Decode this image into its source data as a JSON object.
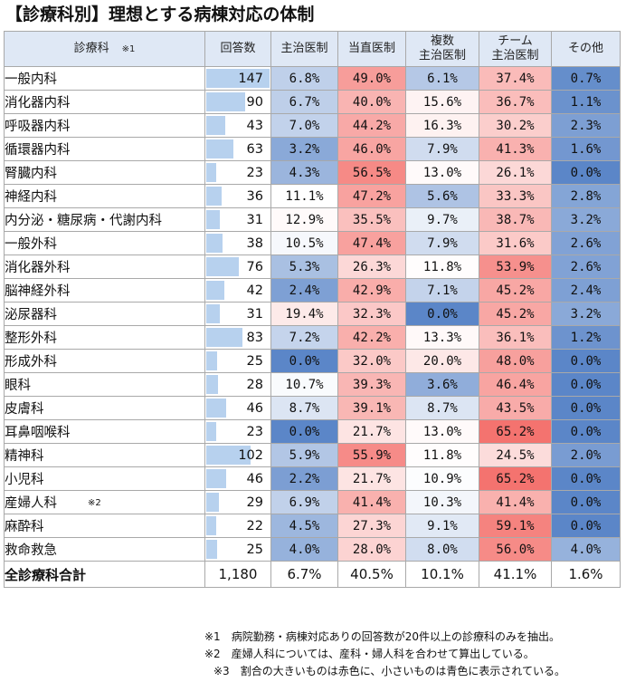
{
  "title": "【診療科別】理想とする病棟対応の体制",
  "chart_data": {
    "type": "table",
    "header": {
      "dept": "診療科",
      "dept_note": "※1",
      "count": "回答数",
      "cols": [
        {
          "l1": "主治医制",
          "l2": ""
        },
        {
          "l1": "当直医制",
          "l2": ""
        },
        {
          "l1": "複数",
          "l2": "主治医制"
        },
        {
          "l1": "チーム",
          "l2": "主治医制"
        },
        {
          "l1": "その他",
          "l2": ""
        }
      ]
    },
    "count_max": 147,
    "rows": [
      {
        "name": "一般内科",
        "note": "",
        "count": 147,
        "values": [
          6.8,
          49.0,
          6.1,
          37.4,
          0.7
        ]
      },
      {
        "name": "消化器内科",
        "note": "",
        "count": 90,
        "values": [
          6.7,
          40.0,
          15.6,
          36.7,
          1.1
        ]
      },
      {
        "name": "呼吸器内科",
        "note": "",
        "count": 43,
        "values": [
          7.0,
          44.2,
          16.3,
          30.2,
          2.3
        ]
      },
      {
        "name": "循環器内科",
        "note": "",
        "count": 63,
        "values": [
          3.2,
          46.0,
          7.9,
          41.3,
          1.6
        ]
      },
      {
        "name": "腎臓内科",
        "note": "",
        "count": 23,
        "values": [
          4.3,
          56.5,
          13.0,
          26.1,
          0.0
        ]
      },
      {
        "name": "神経内科",
        "note": "",
        "count": 36,
        "values": [
          11.1,
          47.2,
          5.6,
          33.3,
          2.8
        ]
      },
      {
        "name": "内分泌・糖尿病・代謝内科",
        "note": "",
        "count": 31,
        "values": [
          12.9,
          35.5,
          9.7,
          38.7,
          3.2
        ]
      },
      {
        "name": "一般外科",
        "note": "",
        "count": 38,
        "values": [
          10.5,
          47.4,
          7.9,
          31.6,
          2.6
        ]
      },
      {
        "name": "消化器外科",
        "note": "",
        "count": 76,
        "values": [
          5.3,
          26.3,
          11.8,
          53.9,
          2.6
        ]
      },
      {
        "name": "脳神経外科",
        "note": "",
        "count": 42,
        "values": [
          2.4,
          42.9,
          7.1,
          45.2,
          2.4
        ]
      },
      {
        "name": "泌尿器科",
        "note": "",
        "count": 31,
        "values": [
          19.4,
          32.3,
          0.0,
          45.2,
          3.2
        ]
      },
      {
        "name": "整形外科",
        "note": "",
        "count": 83,
        "values": [
          7.2,
          42.2,
          13.3,
          36.1,
          1.2
        ]
      },
      {
        "name": "形成外科",
        "note": "",
        "count": 25,
        "values": [
          0.0,
          32.0,
          20.0,
          48.0,
          0.0
        ]
      },
      {
        "name": "眼科",
        "note": "",
        "count": 28,
        "values": [
          10.7,
          39.3,
          3.6,
          46.4,
          0.0
        ]
      },
      {
        "name": "皮膚科",
        "note": "",
        "count": 46,
        "values": [
          8.7,
          39.1,
          8.7,
          43.5,
          0.0
        ]
      },
      {
        "name": "耳鼻咽喉科",
        "note": "",
        "count": 23,
        "values": [
          0.0,
          21.7,
          13.0,
          65.2,
          0.0
        ]
      },
      {
        "name": "精神科",
        "note": "",
        "count": 102,
        "values": [
          5.9,
          55.9,
          11.8,
          24.5,
          2.0
        ]
      },
      {
        "name": "小児科",
        "note": "",
        "count": 46,
        "values": [
          2.2,
          21.7,
          10.9,
          65.2,
          0.0
        ]
      },
      {
        "name": "産婦人科",
        "note": "※2",
        "count": 29,
        "values": [
          6.9,
          41.4,
          10.3,
          41.4,
          0.0
        ]
      },
      {
        "name": "麻酔科",
        "note": "",
        "count": 22,
        "values": [
          4.5,
          27.3,
          9.1,
          59.1,
          0.0
        ]
      },
      {
        "name": "救命救急",
        "note": "",
        "count": 25,
        "values": [
          4.0,
          28.0,
          8.0,
          56.0,
          4.0
        ]
      }
    ],
    "total": {
      "name": "全診療科合計",
      "count": "1,180",
      "values": [
        "6.7%",
        "40.5%",
        "10.1%",
        "41.1%",
        "1.6%"
      ]
    },
    "color_min": "#5b86c8",
    "color_mid": "#ffffff",
    "color_max": "#f4736f",
    "count_bar_color": "#b7d1ee"
  },
  "notes": [
    "※1　病院勤務・病棟対応ありの回答数が20件以上の診療科のみを抽出。",
    "※2　産婦人科については、産科・婦人科を合わせて算出している。",
    "※3　割合の大きいものは赤色に、小さいものは青色に表示されている。"
  ]
}
